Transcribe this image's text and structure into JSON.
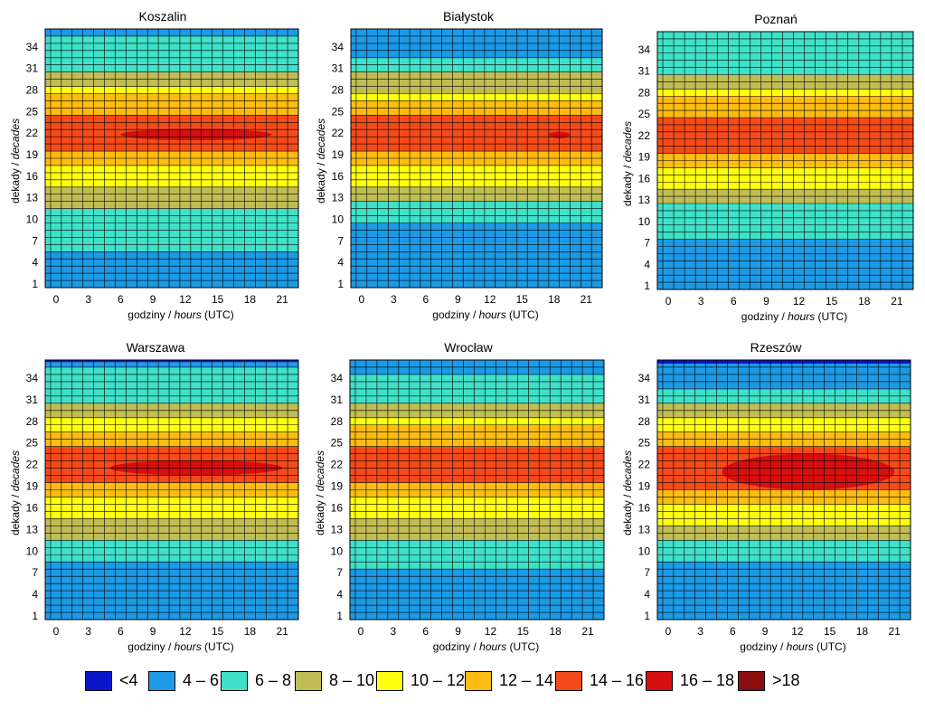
{
  "legend": [
    {
      "label": "<4",
      "color": "#0b16c9"
    },
    {
      "label": "4 – 6",
      "color": "#1d9ae6"
    },
    {
      "label": "6 – 8",
      "color": "#3fe1c8"
    },
    {
      "label": "8 – 10",
      "color": "#c0bd55"
    },
    {
      "label": "10 – 12",
      "color": "#ffff10"
    },
    {
      "label": "12 – 14",
      "color": "#fcbc12"
    },
    {
      "label": "14 – 16",
      "color": "#f54b1a"
    },
    {
      "label": "16 – 18",
      "color": "#d70f0f"
    },
    {
      "label": ">18",
      "color": "#8b0d0d"
    }
  ],
  "axis_labels": {
    "ylabel_main": "dekady / ",
    "ylabel_italic": "decades",
    "xlabel_main": "godziny /",
    "xlabel_italic": "hours",
    "xlabel_unit": " (UTC)"
  },
  "chart_data": [
    {
      "type": "heatmap",
      "title": "Koszalin",
      "x_ticks": [
        "0",
        "3",
        "6",
        "9",
        "12",
        "15",
        "18",
        "21"
      ],
      "y_ticks": [
        "1",
        "4",
        "7",
        "10",
        "13",
        "16",
        "19",
        "22",
        "25",
        "28",
        "31",
        "34"
      ],
      "x_range": [
        -1,
        22.5
      ],
      "y_range": [
        0.5,
        36.5
      ],
      "bands": [
        {
          "from": 0.5,
          "to": 5.5,
          "class": 1
        },
        {
          "from": 5.5,
          "to": 11.5,
          "class": 2
        },
        {
          "from": 11.5,
          "to": 14.5,
          "class": 3
        },
        {
          "from": 14.5,
          "to": 17.5,
          "class": 4
        },
        {
          "from": 17.5,
          "to": 19.5,
          "class": 5
        },
        {
          "from": 19.5,
          "to": 24.5,
          "class": 6
        },
        {
          "from": 24.5,
          "to": 27.5,
          "class": 5
        },
        {
          "from": 27.5,
          "to": 28.5,
          "class": 4
        },
        {
          "from": 28.5,
          "to": 30.5,
          "class": 3
        },
        {
          "from": 30.5,
          "to": 35.5,
          "class": 2
        },
        {
          "from": 35.5,
          "to": 36.5,
          "class": 1
        }
      ],
      "patches": [
        {
          "x0": 6,
          "x1": 20,
          "y0": 21,
          "y1": 22.6,
          "class": 7
        }
      ]
    },
    {
      "type": "heatmap",
      "title": "Białystok",
      "x_ticks": [
        "0",
        "3",
        "6",
        "9",
        "12",
        "15",
        "18",
        "21"
      ],
      "y_ticks": [
        "1",
        "4",
        "7",
        "10",
        "13",
        "16",
        "19",
        "22",
        "25",
        "28",
        "31",
        "34"
      ],
      "x_range": [
        -1,
        22.5
      ],
      "y_range": [
        0.5,
        36.5
      ],
      "bands": [
        {
          "from": 0.5,
          "to": 9.5,
          "class": 1
        },
        {
          "from": 9.5,
          "to": 12.5,
          "class": 2
        },
        {
          "from": 12.5,
          "to": 14.5,
          "class": 3
        },
        {
          "from": 14.5,
          "to": 17.5,
          "class": 4
        },
        {
          "from": 17.5,
          "to": 19.5,
          "class": 5
        },
        {
          "from": 19.5,
          "to": 24.5,
          "class": 6
        },
        {
          "from": 24.5,
          "to": 26.5,
          "class": 5
        },
        {
          "from": 26.5,
          "to": 27.5,
          "class": 4
        },
        {
          "from": 27.5,
          "to": 30.5,
          "class": 3
        },
        {
          "from": 30.5,
          "to": 32.5,
          "class": 2
        },
        {
          "from": 32.5,
          "to": 36.5,
          "class": 1
        }
      ],
      "patches": [
        {
          "x0": 17.5,
          "x1": 19.5,
          "y0": 21.3,
          "y1": 22.2,
          "class": 7
        }
      ]
    },
    {
      "type": "heatmap",
      "title": "Poznań",
      "x_ticks": [
        "0",
        "3",
        "6",
        "9",
        "12",
        "15",
        "18",
        "21"
      ],
      "y_ticks": [
        "1",
        "4",
        "7",
        "10",
        "13",
        "16",
        "19",
        "22",
        "25",
        "28",
        "31",
        "34"
      ],
      "x_range": [
        -1,
        22.5
      ],
      "y_range": [
        0.5,
        36.5
      ],
      "bands": [
        {
          "from": 0.5,
          "to": 7.5,
          "class": 1
        },
        {
          "from": 7.5,
          "to": 12.5,
          "class": 2
        },
        {
          "from": 12.5,
          "to": 14.5,
          "class": 3
        },
        {
          "from": 14.5,
          "to": 17.5,
          "class": 4
        },
        {
          "from": 17.5,
          "to": 19.5,
          "class": 5
        },
        {
          "from": 19.5,
          "to": 24.5,
          "class": 6
        },
        {
          "from": 24.5,
          "to": 27.5,
          "class": 5
        },
        {
          "from": 27.5,
          "to": 28.5,
          "class": 4
        },
        {
          "from": 28.5,
          "to": 30.5,
          "class": 3
        },
        {
          "from": 30.5,
          "to": 36.5,
          "class": 2
        }
      ],
      "patches": []
    },
    {
      "type": "heatmap",
      "title": "Warszawa",
      "x_ticks": [
        "0",
        "3",
        "6",
        "9",
        "12",
        "15",
        "18",
        "21"
      ],
      "y_ticks": [
        "1",
        "4",
        "7",
        "10",
        "13",
        "16",
        "19",
        "22",
        "25",
        "28",
        "31",
        "34"
      ],
      "x_range": [
        -1,
        22.5
      ],
      "y_range": [
        0.5,
        36.5
      ],
      "bands": [
        {
          "from": 0.5,
          "to": 8.5,
          "class": 1
        },
        {
          "from": 8.5,
          "to": 11.5,
          "class": 2
        },
        {
          "from": 11.5,
          "to": 14.5,
          "class": 3
        },
        {
          "from": 14.5,
          "to": 17.5,
          "class": 4
        },
        {
          "from": 17.5,
          "to": 19.5,
          "class": 5
        },
        {
          "from": 19.5,
          "to": 24.5,
          "class": 6
        },
        {
          "from": 24.5,
          "to": 26.5,
          "class": 5
        },
        {
          "from": 26.5,
          "to": 28.5,
          "class": 4
        },
        {
          "from": 28.5,
          "to": 30.5,
          "class": 3
        },
        {
          "from": 30.5,
          "to": 35.5,
          "class": 2
        },
        {
          "from": 35.5,
          "to": 36.2,
          "class": 1
        },
        {
          "from": 36.2,
          "to": 36.5,
          "class": 0
        }
      ],
      "patches": [
        {
          "x0": 5,
          "x1": 21,
          "y0": 20.5,
          "y1": 22.6,
          "class": 7
        }
      ]
    },
    {
      "type": "heatmap",
      "title": "Wrocław",
      "x_ticks": [
        "0",
        "3",
        "6",
        "9",
        "12",
        "15",
        "18",
        "21"
      ],
      "y_ticks": [
        "1",
        "4",
        "7",
        "10",
        "13",
        "16",
        "19",
        "22",
        "25",
        "28",
        "31",
        "34"
      ],
      "x_range": [
        -1,
        22.5
      ],
      "y_range": [
        0.5,
        36.5
      ],
      "bands": [
        {
          "from": 0.5,
          "to": 7.5,
          "class": 1
        },
        {
          "from": 7.5,
          "to": 11.5,
          "class": 2
        },
        {
          "from": 11.5,
          "to": 14.5,
          "class": 3
        },
        {
          "from": 14.5,
          "to": 17.5,
          "class": 4
        },
        {
          "from": 17.5,
          "to": 19.5,
          "class": 5
        },
        {
          "from": 19.5,
          "to": 24.5,
          "class": 6
        },
        {
          "from": 24.5,
          "to": 27.5,
          "class": 5
        },
        {
          "from": 27.5,
          "to": 28.5,
          "class": 4
        },
        {
          "from": 28.5,
          "to": 30.5,
          "class": 3
        },
        {
          "from": 30.5,
          "to": 34.5,
          "class": 2
        },
        {
          "from": 34.5,
          "to": 36.5,
          "class": 1
        }
      ],
      "patches": []
    },
    {
      "type": "heatmap",
      "title": "Rzeszów",
      "x_ticks": [
        "0",
        "3",
        "6",
        "9",
        "12",
        "15",
        "18",
        "21"
      ],
      "y_ticks": [
        "1",
        "4",
        "7",
        "10",
        "13",
        "16",
        "19",
        "22",
        "25",
        "28",
        "31",
        "34"
      ],
      "x_range": [
        -1,
        22.5
      ],
      "y_range": [
        0.5,
        36.5
      ],
      "bands": [
        {
          "from": 0.5,
          "to": 8.5,
          "class": 1
        },
        {
          "from": 8.5,
          "to": 11.5,
          "class": 2
        },
        {
          "from": 11.5,
          "to": 13.5,
          "class": 3
        },
        {
          "from": 13.5,
          "to": 16.5,
          "class": 4
        },
        {
          "from": 16.5,
          "to": 18.5,
          "class": 5
        },
        {
          "from": 18.5,
          "to": 24.5,
          "class": 6
        },
        {
          "from": 24.5,
          "to": 26.5,
          "class": 5
        },
        {
          "from": 26.5,
          "to": 28.5,
          "class": 4
        },
        {
          "from": 28.5,
          "to": 30.5,
          "class": 3
        },
        {
          "from": 30.5,
          "to": 32.5,
          "class": 2
        },
        {
          "from": 32.5,
          "to": 36.0,
          "class": 1
        },
        {
          "from": 36.0,
          "to": 36.5,
          "class": 0
        }
      ],
      "patches": [
        {
          "x0": 5,
          "x1": 21,
          "y0": 18.5,
          "y1": 23.5,
          "class": 7
        }
      ]
    }
  ]
}
